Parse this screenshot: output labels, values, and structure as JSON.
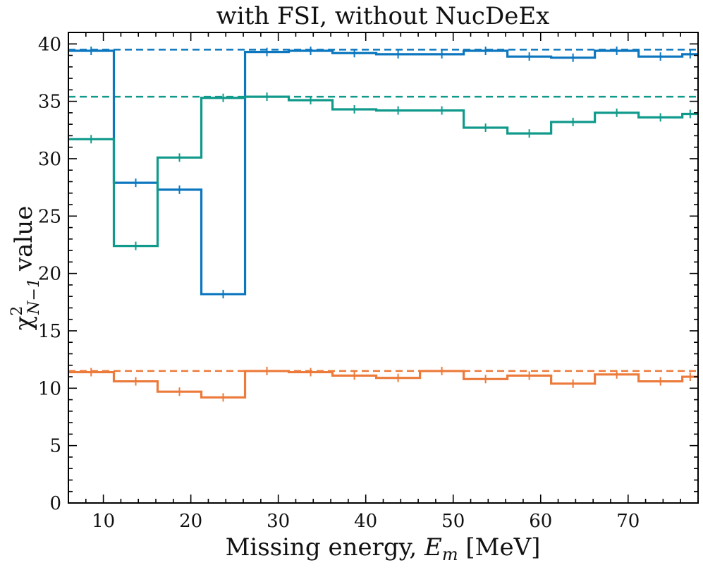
{
  "chart_data": {
    "type": "line",
    "title": "with FSI, without NucDeEx",
    "xlabel": "Missing energy, E_m [MeV]",
    "xlabel_parts": {
      "pre": "Missing energy, ",
      "sym": "E",
      "sub": "m",
      "post": " [MeV]"
    },
    "ylabel": "χ²_{N−1} value",
    "ylabel_parts": {
      "chi": "χ",
      "sup": "2",
      "sub": "N−1",
      "post": "value"
    },
    "xlim": [
      6,
      78
    ],
    "ylim": [
      0,
      41
    ],
    "xticks": [
      10,
      20,
      30,
      40,
      50,
      60,
      70
    ],
    "xtick_labels": [
      "10",
      "20",
      "30",
      "40",
      "50",
      "60",
      "70"
    ],
    "yticks": [
      0,
      5,
      10,
      15,
      20,
      25,
      30,
      35,
      40
    ],
    "ytick_labels": [
      "0",
      "5",
      "10",
      "15",
      "20",
      "25",
      "30",
      "35",
      "40"
    ],
    "bin_edges": [
      6,
      11.2,
      16.2,
      21.2,
      26.2,
      31.2,
      36.2,
      41.2,
      46.2,
      51.2,
      56.2,
      61.2,
      66.2,
      71.2,
      76.2,
      78
    ],
    "series": [
      {
        "name": "blue",
        "color": "#0C77BF",
        "reference": 39.5,
        "values": [
          39.4,
          27.9,
          27.3,
          18.2,
          39.3,
          39.4,
          39.2,
          39.1,
          39.1,
          39.4,
          38.9,
          38.8,
          39.4,
          38.9,
          39.1
        ]
      },
      {
        "name": "teal",
        "color": "#109A8B",
        "reference": 35.4,
        "values": [
          31.7,
          22.4,
          30.1,
          35.3,
          35.4,
          35.1,
          34.3,
          34.2,
          34.2,
          32.7,
          32.2,
          33.2,
          34.0,
          33.6,
          33.9
        ]
      },
      {
        "name": "orange",
        "color": "#EC7A3A",
        "reference": 11.5,
        "values": [
          11.4,
          10.6,
          9.7,
          9.2,
          11.5,
          11.4,
          11.1,
          10.9,
          11.5,
          10.8,
          11.1,
          10.4,
          11.2,
          10.6,
          11.0
        ]
      }
    ]
  }
}
